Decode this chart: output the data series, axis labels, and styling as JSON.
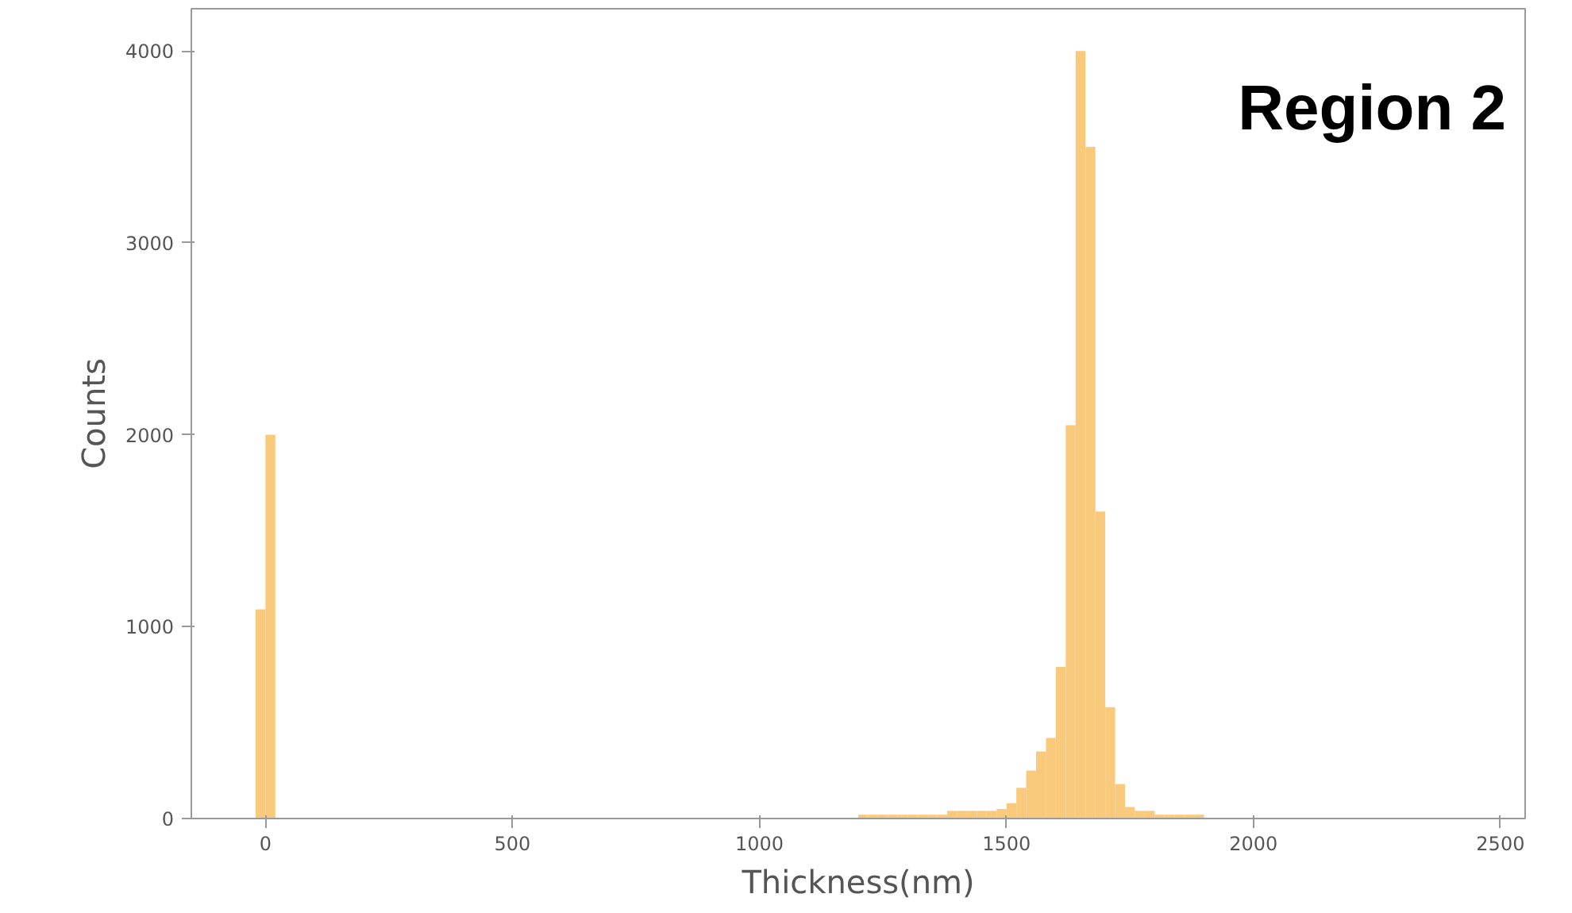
{
  "chart_data": {
    "type": "histogram",
    "xlabel": "Thickness(nm)",
    "ylabel": "Counts",
    "annotations": [
      "Region 2"
    ],
    "bins": [
      -20,
      0,
      20,
      1200,
      1220,
      1240,
      1260,
      1280,
      1300,
      1320,
      1340,
      1360,
      1380,
      1400,
      1420,
      1440,
      1460,
      1480,
      1500,
      1520,
      1540,
      1560,
      1580,
      1600,
      1620,
      1640,
      1660,
      1680,
      1700,
      1720,
      1740,
      1760,
      1780,
      1800,
      1820,
      1840,
      1860,
      1880,
      1900
    ],
    "values": [
      1090,
      2000,
      0,
      20,
      20,
      20,
      20,
      20,
      20,
      20,
      20,
      20,
      40,
      40,
      40,
      40,
      40,
      50,
      80,
      160,
      250,
      350,
      420,
      790,
      2050,
      4000,
      3500,
      1600,
      580,
      180,
      60,
      40,
      40,
      20,
      20,
      20,
      20,
      20
    ],
    "color": "#f9c97c",
    "xlim": [
      -150,
      2550
    ],
    "ylim": [
      0,
      4220
    ],
    "xticks": [
      0,
      500,
      1000,
      1500,
      2000,
      2500
    ],
    "yticks": [
      0,
      1000,
      2000,
      3000,
      4000
    ],
    "grid": false
  }
}
